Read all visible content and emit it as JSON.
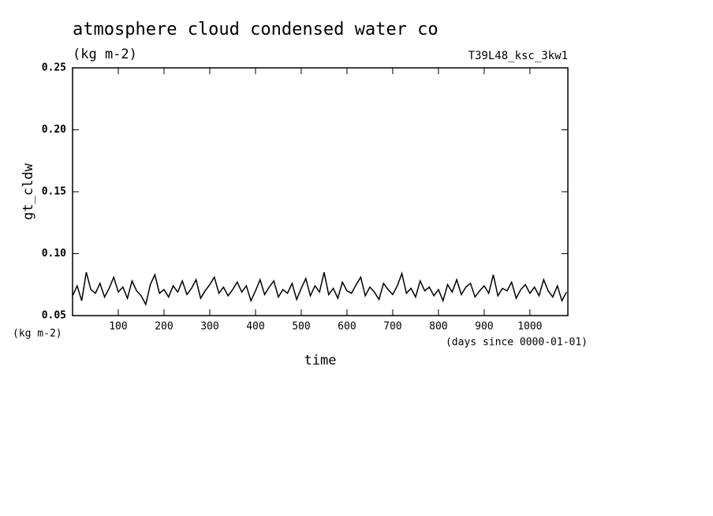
{
  "chart_data": {
    "type": "line",
    "title": "atmosphere cloud condensed water co",
    "subtitle": "(kg m-2)",
    "run_label": "T39L48_ksc_3kw1",
    "y_label": "gt_cldw",
    "y_unit": "(kg m-2)",
    "x_label": "time",
    "x_unit": "(days since 0000-01-01)",
    "color": "#000000",
    "xlim": [
      0,
      1083
    ],
    "ylim": [
      0.05,
      0.25
    ],
    "xticks": [
      100,
      200,
      300,
      400,
      500,
      600,
      700,
      800,
      900,
      1000
    ],
    "yticks": [
      0.05,
      {
        "value": 0.1,
        "label": "0.10"
      },
      0.15,
      {
        "value": 0.2,
        "label": "0.20"
      },
      0.25
    ],
    "x": [
      0,
      10,
      20,
      30,
      40,
      50,
      60,
      70,
      80,
      90,
      100,
      110,
      120,
      130,
      140,
      150,
      160,
      170,
      180,
      190,
      200,
      210,
      220,
      230,
      240,
      250,
      260,
      270,
      280,
      290,
      300,
      310,
      320,
      330,
      340,
      350,
      360,
      370,
      380,
      390,
      400,
      410,
      420,
      430,
      440,
      450,
      460,
      470,
      480,
      490,
      500,
      510,
      520,
      530,
      540,
      550,
      560,
      570,
      580,
      590,
      600,
      610,
      620,
      630,
      640,
      650,
      660,
      670,
      680,
      690,
      700,
      710,
      720,
      730,
      740,
      750,
      760,
      770,
      780,
      790,
      800,
      810,
      820,
      830,
      840,
      850,
      860,
      870,
      880,
      890,
      900,
      910,
      920,
      930,
      940,
      950,
      960,
      970,
      980,
      990,
      1000,
      1010,
      1020,
      1030,
      1040,
      1050,
      1060,
      1070,
      1080
    ],
    "values": [
      0.066,
      0.074,
      0.062,
      0.085,
      0.071,
      0.068,
      0.076,
      0.065,
      0.072,
      0.081,
      0.069,
      0.073,
      0.064,
      0.078,
      0.07,
      0.066,
      0.059,
      0.075,
      0.083,
      0.068,
      0.071,
      0.065,
      0.074,
      0.069,
      0.078,
      0.067,
      0.072,
      0.079,
      0.064,
      0.07,
      0.075,
      0.081,
      0.068,
      0.073,
      0.066,
      0.071,
      0.077,
      0.069,
      0.074,
      0.062,
      0.07,
      0.079,
      0.067,
      0.073,
      0.078,
      0.065,
      0.071,
      0.068,
      0.076,
      0.063,
      0.072,
      0.08,
      0.066,
      0.074,
      0.069,
      0.085,
      0.067,
      0.072,
      0.064,
      0.077,
      0.07,
      0.068,
      0.075,
      0.081,
      0.066,
      0.073,
      0.069,
      0.063,
      0.076,
      0.071,
      0.067,
      0.074,
      0.084,
      0.068,
      0.072,
      0.065,
      0.078,
      0.07,
      0.073,
      0.066,
      0.071,
      0.062,
      0.075,
      0.069,
      0.079,
      0.067,
      0.073,
      0.076,
      0.065,
      0.07,
      0.074,
      0.068,
      0.083,
      0.066,
      0.072,
      0.07,
      0.077,
      0.064,
      0.071,
      0.075,
      0.068,
      0.073,
      0.066,
      0.079,
      0.07,
      0.065,
      0.074,
      0.062,
      0.069
    ]
  }
}
